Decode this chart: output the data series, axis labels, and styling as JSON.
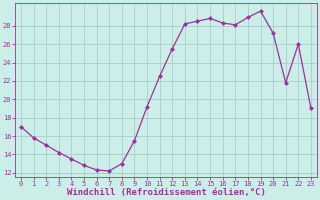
{
  "hours": [
    0,
    1,
    2,
    3,
    4,
    5,
    6,
    7,
    8,
    9,
    10,
    11,
    12,
    13,
    14,
    15,
    16,
    17,
    18,
    19,
    20,
    21,
    22,
    23
  ],
  "windchill": [
    17.0,
    15.8,
    15.0,
    14.2,
    13.5,
    12.8,
    12.3,
    12.2,
    13.0,
    15.5,
    19.2,
    22.5,
    25.5,
    28.2,
    28.5,
    28.8,
    28.3,
    28.1,
    28.9,
    29.6,
    27.2,
    21.8,
    26.0,
    19.0
  ],
  "line_color": "#993399",
  "marker": "D",
  "marker_size": 2.0,
  "bg_color": "#cceee8",
  "grid_color": "#aacccc",
  "xlabel": "Windchill (Refroidissement éolien,°C)",
  "xlabel_color": "#993399",
  "ylim": [
    11.5,
    30.5
  ],
  "yticks": [
    12,
    14,
    16,
    18,
    20,
    22,
    24,
    26,
    28
  ],
  "xlim": [
    -0.5,
    23.5
  ],
  "figsize": [
    3.2,
    2.0
  ],
  "dpi": 100,
  "linewidth": 0.9,
  "tick_fontsize": 5.0,
  "xlabel_fontsize": 6.5
}
